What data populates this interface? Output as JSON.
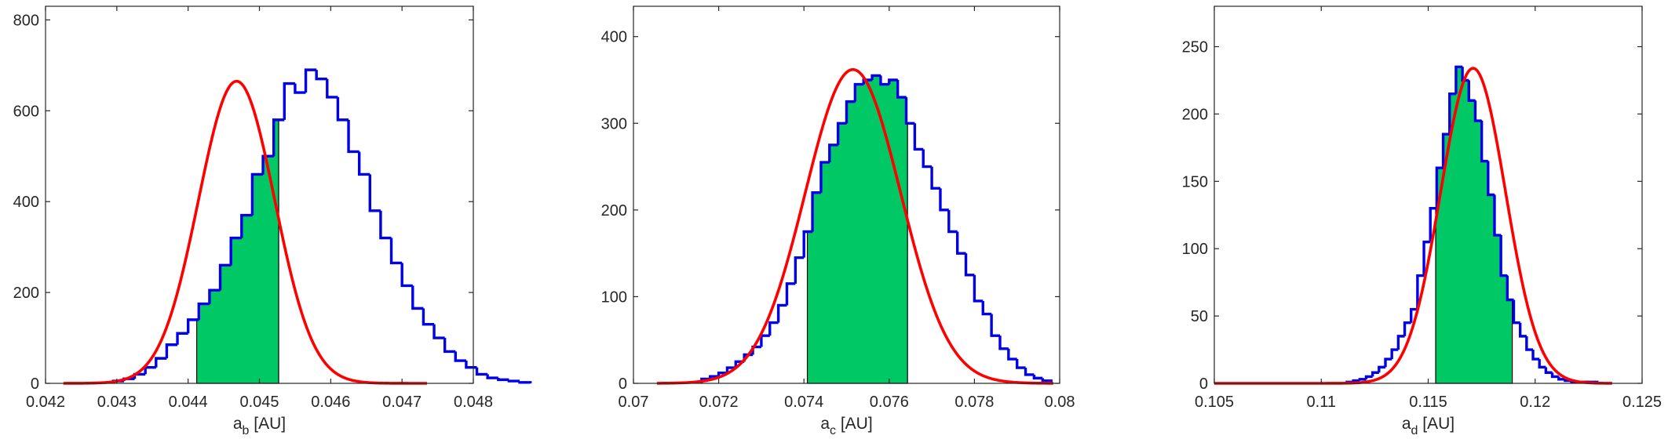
{
  "chart_data": [
    {
      "type": "histogram",
      "xlabel": {
        "base": "a",
        "sub": "b",
        "unit": " [AU]"
      },
      "xlim": [
        0.042,
        0.048
      ],
      "ylim": [
        0,
        830
      ],
      "xticks": [
        0.042,
        0.043,
        0.044,
        0.045,
        0.046,
        0.047,
        0.048
      ],
      "xtick_labels": [
        "0.042",
        "0.043",
        "0.044",
        "0.045",
        "0.046",
        "0.047",
        "0.048"
      ],
      "yticks": [
        0,
        200,
        400,
        600,
        800
      ],
      "ytick_labels": [
        "0",
        "200",
        "400",
        "600",
        "800"
      ],
      "bin_start": 0.04295,
      "bin_width": 0.00015,
      "counts": [
        5,
        10,
        20,
        35,
        55,
        85,
        110,
        140,
        175,
        205,
        260,
        320,
        370,
        460,
        500,
        580,
        660,
        640,
        690,
        670,
        630,
        580,
        510,
        460,
        380,
        320,
        265,
        215,
        165,
        130,
        100,
        70,
        50,
        35,
        20,
        12,
        8,
        5,
        2
      ],
      "shade_range": [
        0.04412,
        0.04527
      ],
      "fit": {
        "mean": 0.04468,
        "sigma": 0.000535,
        "peak": 665,
        "range": [
          0.04225,
          0.04735
        ]
      },
      "colors": {
        "bars": "#0000e6",
        "fill": "#00c864",
        "fit": "#ff0000"
      }
    },
    {
      "type": "histogram",
      "xlabel": {
        "base": "a",
        "sub": "c",
        "unit": " [AU]"
      },
      "xlim": [
        0.07,
        0.08
      ],
      "ylim": [
        0,
        435
      ],
      "xticks": [
        0.07,
        0.072,
        0.074,
        0.076,
        0.078,
        0.08
      ],
      "xtick_labels": [
        "0.07",
        "0.072",
        "0.074",
        "0.076",
        "0.078",
        "0.08"
      ],
      "yticks": [
        0,
        100,
        200,
        300,
        400
      ],
      "ytick_labels": [
        "0",
        "100",
        "200",
        "300",
        "400"
      ],
      "bin_start": 0.0716,
      "bin_width": 0.0002,
      "counts": [
        5,
        8,
        12,
        18,
        25,
        33,
        42,
        55,
        70,
        90,
        115,
        145,
        175,
        220,
        255,
        275,
        300,
        325,
        345,
        350,
        355,
        345,
        350,
        330,
        300,
        270,
        250,
        225,
        200,
        175,
        150,
        125,
        95,
        80,
        55,
        40,
        28,
        18,
        10,
        6,
        3
      ],
      "shade_range": [
        0.07408,
        0.07643
      ],
      "fit": {
        "mean": 0.07515,
        "sigma": 0.00112,
        "peak": 362,
        "range": [
          0.07055,
          0.07985
        ]
      },
      "colors": {
        "bars": "#0000e6",
        "fill": "#00c864",
        "fit": "#ff0000"
      }
    },
    {
      "type": "histogram",
      "xlabel": {
        "base": "a",
        "sub": "d",
        "unit": " [AU]"
      },
      "xlim": [
        0.105,
        0.125
      ],
      "ylim": [
        0,
        280
      ],
      "xticks": [
        0.105,
        0.11,
        0.115,
        0.12,
        0.125
      ],
      "xtick_labels": [
        "0.105",
        "0.11",
        "0.115",
        "0.12",
        "0.125"
      ],
      "yticks": [
        0,
        50,
        100,
        150,
        200,
        250
      ],
      "ytick_labels": [
        "0",
        "50",
        "100",
        "150",
        "200",
        "250"
      ],
      "bin_start": 0.1112,
      "bin_width": 0.0003,
      "counts": [
        1,
        2,
        3,
        5,
        8,
        12,
        18,
        25,
        35,
        45,
        55,
        80,
        105,
        130,
        160,
        185,
        215,
        235,
        225,
        210,
        195,
        165,
        140,
        110,
        80,
        62,
        45,
        35,
        25,
        18,
        12,
        8,
        5,
        3,
        2,
        1,
        1,
        1,
        1
      ],
      "shade_range": [
        0.11535,
        0.11893
      ],
      "fit": {
        "mean": 0.1171,
        "sigma": 0.00152,
        "peak": 234,
        "range": [
          0.105,
          0.1236
        ]
      },
      "colors": {
        "bars": "#0000e6",
        "fill": "#00c864",
        "fit": "#ff0000"
      }
    }
  ]
}
